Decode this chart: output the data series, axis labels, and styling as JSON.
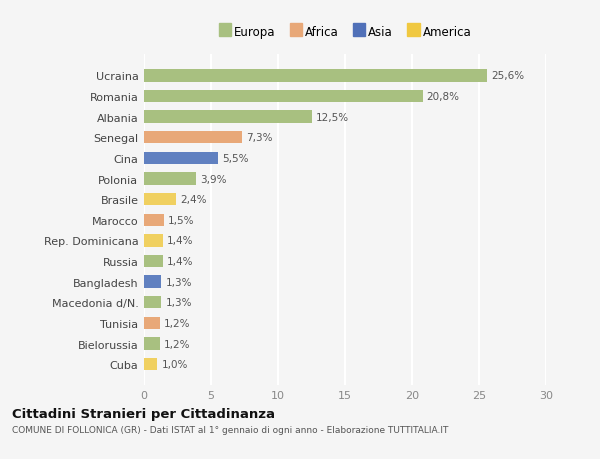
{
  "countries": [
    "Ucraina",
    "Romania",
    "Albania",
    "Senegal",
    "Cina",
    "Polonia",
    "Brasile",
    "Marocco",
    "Rep. Dominicana",
    "Russia",
    "Bangladesh",
    "Macedonia d/N.",
    "Tunisia",
    "Bielorussia",
    "Cuba"
  ],
  "values": [
    25.6,
    20.8,
    12.5,
    7.3,
    5.5,
    3.9,
    2.4,
    1.5,
    1.4,
    1.4,
    1.3,
    1.3,
    1.2,
    1.2,
    1.0
  ],
  "labels": [
    "25,6%",
    "20,8%",
    "12,5%",
    "7,3%",
    "5,5%",
    "3,9%",
    "2,4%",
    "1,5%",
    "1,4%",
    "1,4%",
    "1,3%",
    "1,3%",
    "1,2%",
    "1,2%",
    "1,0%"
  ],
  "continents": [
    "Europa",
    "Europa",
    "Europa",
    "Africa",
    "Asia",
    "Europa",
    "America",
    "Africa",
    "America",
    "Europa",
    "Asia",
    "Europa",
    "Africa",
    "Europa",
    "America"
  ],
  "colors": {
    "Europa": "#a8c080",
    "Africa": "#e8a878",
    "Asia": "#6080c0",
    "America": "#f0d060"
  },
  "legend_colors": {
    "Europa": "#a8c080",
    "Africa": "#e8a878",
    "Asia": "#5070b8",
    "America": "#f0c840"
  },
  "xlim": [
    0,
    30
  ],
  "xticks": [
    0,
    5,
    10,
    15,
    20,
    25,
    30
  ],
  "title": "Cittadini Stranieri per Cittadinanza",
  "subtitle": "COMUNE DI FOLLONICA (GR) - Dati ISTAT al 1° gennaio di ogni anno - Elaborazione TUTTITALIA.IT",
  "background_color": "#f5f5f5",
  "grid_color": "#ffffff",
  "bar_height": 0.6
}
